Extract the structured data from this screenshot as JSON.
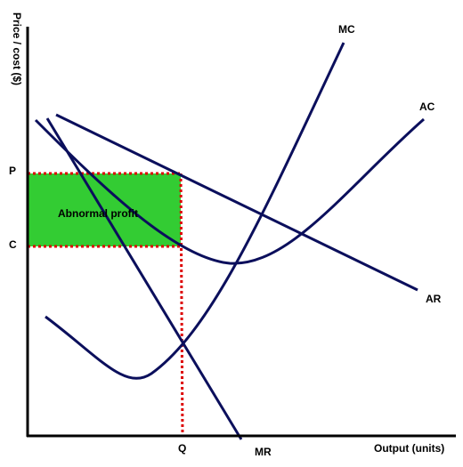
{
  "diagram": {
    "y_axis_label": "Price / cost ($)",
    "x_axis_label": "Output (units)",
    "price_label": "P",
    "cost_label": "C",
    "quantity_label": "Q",
    "profit_label": "Abnormal profit",
    "curves": {
      "mc": "MC",
      "ac": "AC",
      "ar": "AR",
      "mr": "MR"
    }
  },
  "colors": {
    "curve": "#0b0f5c",
    "profit_fill": "#33cc33",
    "dotted_line": "#dd0000",
    "axis": "#000000"
  }
}
